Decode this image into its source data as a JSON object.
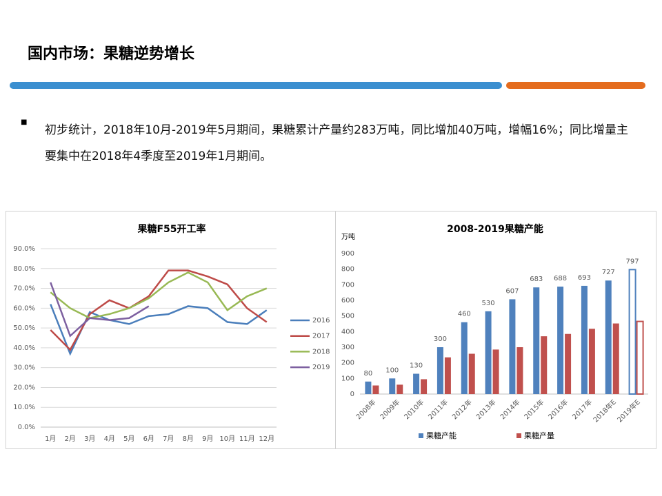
{
  "header": {
    "title": "国内市场：果糖逆势增长"
  },
  "bullets": [
    "初步统计，2018年10月-2019年5月期间，果糖累计产量约283万吨，同比增加40万吨，增幅16%；同比增量主要集中在2018年4季度至2019年1月期间。"
  ],
  "chart_data": [
    {
      "type": "line",
      "title": "果糖F55开工率",
      "categories": [
        "1月",
        "2月",
        "3月",
        "4月",
        "5月",
        "6月",
        "7月",
        "8月",
        "9月",
        "10月",
        "11月",
        "12月"
      ],
      "series": [
        {
          "name": "2016",
          "color": "#4a7ebb",
          "values": [
            62,
            37,
            58,
            54,
            52,
            56,
            57,
            61,
            60,
            53,
            52,
            59
          ]
        },
        {
          "name": "2017",
          "color": "#be4b48",
          "values": [
            49,
            39,
            57,
            64,
            60,
            66,
            79,
            79,
            76,
            72,
            60,
            53
          ]
        },
        {
          "name": "2018",
          "color": "#98b954",
          "values": [
            68,
            60,
            55,
            57,
            60,
            65,
            73,
            78,
            73,
            59,
            66,
            70
          ]
        },
        {
          "name": "2019",
          "color": "#7d60a0",
          "values": [
            73,
            46,
            55,
            54,
            55,
            61,
            null,
            null,
            null,
            null,
            null,
            null
          ]
        }
      ],
      "ylim": [
        0,
        90
      ],
      "yticks": [
        {
          "value": 0,
          "label": "0.0%"
        },
        {
          "value": 10,
          "label": "10.0%"
        },
        {
          "value": 20,
          "label": "20.0%"
        },
        {
          "value": 30,
          "label": "30.0%"
        },
        {
          "value": 40,
          "label": "40.0%"
        },
        {
          "value": 50,
          "label": "50.0%"
        },
        {
          "value": 60,
          "label": "60.0%"
        },
        {
          "value": 70,
          "label": "70.0%"
        },
        {
          "value": 80,
          "label": "80.0%"
        },
        {
          "value": 90,
          "label": "90.0%"
        }
      ],
      "grid": true,
      "legend": "right"
    },
    {
      "type": "bar",
      "title": "2008-2019果糖产能",
      "y_label": "万吨",
      "categories": [
        "2008年",
        "2009年",
        "2010年",
        "2011年",
        "2012年",
        "2013年",
        "2014年",
        "2015年",
        "2016年",
        "2017年",
        "2018年E",
        "2019年E"
      ],
      "series": [
        {
          "name": "果糖产能",
          "color": "#4f81bd",
          "values": [
            80,
            100,
            130,
            300,
            460,
            530,
            607,
            683,
            688,
            693,
            727,
            797
          ],
          "data_labels": true
        },
        {
          "name": "果糖产量",
          "color": "#c0504d",
          "values": [
            55,
            60,
            95,
            235,
            258,
            285,
            300,
            370,
            385,
            418,
            452,
            465
          ]
        }
      ],
      "ylim": [
        0,
        900
      ],
      "yticks": [
        0,
        100,
        200,
        300,
        400,
        500,
        600,
        700,
        800,
        900
      ],
      "grid": false,
      "legend": "bottom",
      "hollow_last": true
    }
  ]
}
